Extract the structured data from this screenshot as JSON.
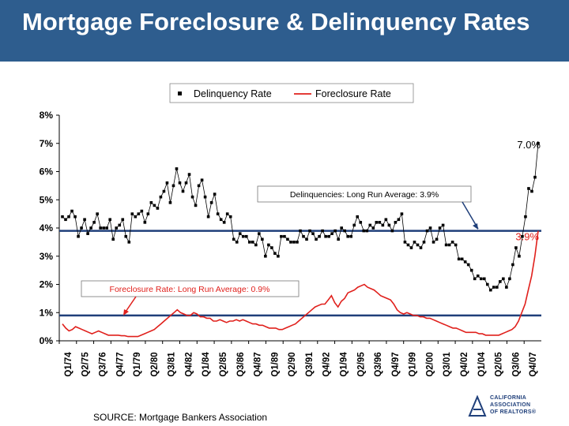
{
  "header": {
    "title": "Mortgage Foreclosure & Delinquency Rates"
  },
  "footer": {
    "source": "SOURCE: Mortgage Bankers Association"
  },
  "logo": {
    "line1": "CALIFORNIA",
    "line2": "ASSOCIATION",
    "line3": "OF REALTORS®"
  },
  "colors": {
    "header": "#2e5d8e",
    "foreclosure": "#e0201c",
    "delinquency": "#000000",
    "average_line": "#1f3f7a"
  },
  "chart_data": {
    "type": "line",
    "ylim": [
      0,
      8
    ],
    "yticks": [
      "0%",
      "1%",
      "2%",
      "3%",
      "4%",
      "5%",
      "6%",
      "7%",
      "8%"
    ],
    "xticks": [
      "Q1/74",
      "Q2/75",
      "Q3/76",
      "Q4/77",
      "Q1/79",
      "Q2/80",
      "Q3/81",
      "Q4/82",
      "Q1/84",
      "Q2/85",
      "Q3/86",
      "Q4/87",
      "Q1/89",
      "Q2/90",
      "Q3/91",
      "Q4/92",
      "Q1/94",
      "Q2/95",
      "Q3/96",
      "Q4/97",
      "Q1/99",
      "Q2/00",
      "Q3/01",
      "Q4/02",
      "Q1/04",
      "Q2/05",
      "Q3/06",
      "Q4/07"
    ],
    "legend": {
      "position": "top-center",
      "delinquency": "Delinquency Rate",
      "foreclosure": "Foreclosure Rate"
    },
    "series": [
      {
        "name": "Delinquency Rate",
        "style": "markers",
        "values": [
          4.4,
          4.3,
          4.4,
          4.6,
          4.4,
          3.7,
          4.0,
          4.3,
          3.8,
          4.0,
          4.2,
          4.5,
          4.0,
          4.0,
          4.0,
          4.3,
          3.6,
          4.0,
          4.1,
          4.3,
          3.7,
          3.5,
          4.5,
          4.4,
          4.5,
          4.6,
          4.2,
          4.5,
          4.9,
          4.8,
          4.7,
          5.1,
          5.3,
          5.6,
          4.9,
          5.5,
          6.1,
          5.6,
          5.3,
          5.6,
          5.9,
          5.1,
          4.8,
          5.5,
          5.7,
          5.1,
          4.4,
          4.9,
          5.2,
          4.5,
          4.3,
          4.2,
          4.5,
          4.4,
          3.6,
          3.5,
          3.8,
          3.7,
          3.7,
          3.5,
          3.5,
          3.4,
          3.8,
          3.6,
          3.0,
          3.4,
          3.3,
          3.1,
          3.0,
          3.7,
          3.7,
          3.6,
          3.5,
          3.5,
          3.5,
          3.9,
          3.7,
          3.6,
          3.9,
          3.8,
          3.6,
          3.7,
          3.9,
          3.7,
          3.7,
          3.8,
          3.9,
          3.6,
          4.0,
          3.9,
          3.7,
          3.7,
          4.1,
          4.4,
          4.2,
          3.9,
          3.9,
          4.1,
          4.0,
          4.2,
          4.2,
          4.1,
          4.3,
          4.1,
          3.9,
          4.2,
          4.3,
          4.5,
          3.5,
          3.4,
          3.3,
          3.5,
          3.4,
          3.3,
          3.5,
          3.9,
          4.0,
          3.5,
          3.6,
          4.0,
          4.1,
          3.4,
          3.4,
          3.5,
          3.4,
          2.9,
          2.9,
          2.8,
          2.7,
          2.5,
          2.2,
          2.3,
          2.2,
          2.2,
          2.0,
          1.8,
          1.9,
          1.9,
          2.1,
          2.2,
          1.9,
          2.2,
          2.7,
          3.3,
          3.0,
          3.7,
          4.4,
          5.4,
          5.3,
          5.8,
          7.0
        ]
      },
      {
        "name": "Foreclosure Rate",
        "style": "line",
        "values": [
          0.6,
          0.45,
          0.35,
          0.4,
          0.5,
          0.45,
          0.4,
          0.35,
          0.3,
          0.25,
          0.3,
          0.35,
          0.3,
          0.25,
          0.2,
          0.2,
          0.2,
          0.2,
          0.18,
          0.18,
          0.15,
          0.15,
          0.15,
          0.15,
          0.2,
          0.25,
          0.3,
          0.35,
          0.4,
          0.5,
          0.6,
          0.7,
          0.8,
          0.9,
          1.0,
          1.1,
          1.0,
          0.95,
          0.9,
          0.9,
          1.0,
          0.95,
          0.85,
          0.85,
          0.8,
          0.8,
          0.7,
          0.7,
          0.75,
          0.7,
          0.65,
          0.7,
          0.7,
          0.75,
          0.7,
          0.75,
          0.7,
          0.65,
          0.6,
          0.6,
          0.55,
          0.55,
          0.5,
          0.45,
          0.45,
          0.45,
          0.4,
          0.4,
          0.45,
          0.5,
          0.55,
          0.6,
          0.7,
          0.8,
          0.9,
          1.0,
          1.1,
          1.2,
          1.25,
          1.3,
          1.3,
          1.45,
          1.6,
          1.35,
          1.2,
          1.4,
          1.5,
          1.7,
          1.75,
          1.8,
          1.9,
          1.95,
          2.0,
          1.9,
          1.85,
          1.8,
          1.7,
          1.6,
          1.55,
          1.5,
          1.45,
          1.3,
          1.1,
          1.0,
          0.95,
          1.0,
          0.95,
          0.9,
          0.9,
          0.85,
          0.85,
          0.8,
          0.8,
          0.75,
          0.7,
          0.65,
          0.6,
          0.55,
          0.5,
          0.45,
          0.45,
          0.4,
          0.35,
          0.3,
          0.3,
          0.3,
          0.3,
          0.25,
          0.25,
          0.2,
          0.2,
          0.2,
          0.2,
          0.2,
          0.25,
          0.3,
          0.35,
          0.4,
          0.5,
          0.7,
          1.0,
          1.3,
          1.8,
          2.3,
          3.0,
          3.9
        ]
      }
    ],
    "reference_lines": [
      {
        "value": 3.9,
        "label": "3.9%"
      },
      {
        "value": 0.9
      }
    ],
    "annotations": [
      {
        "text": "Delinquencies: Long Run Average: 3.9%"
      },
      {
        "text": "Foreclosure Rate: Long Run Average: 0.9%"
      },
      {
        "text": "7.0%"
      }
    ]
  }
}
